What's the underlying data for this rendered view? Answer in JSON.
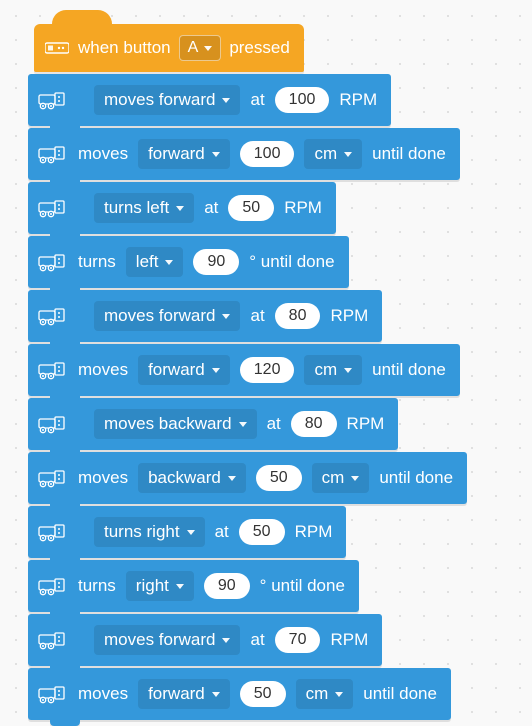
{
  "colors": {
    "event_block": "#f5a623",
    "motion_block": "#3498db",
    "motion_inner": "#2f89c5",
    "pill_bg": "#ffffff",
    "pill_text": "#333333",
    "canvas_bg": "#f9f9f9",
    "dot": "#d8d8d8"
  },
  "event": {
    "prefix": "when button",
    "button": "A",
    "suffix": "pressed"
  },
  "blocks": [
    {
      "kind": "rate",
      "indent": 1,
      "dd": "moves forward",
      "value": "100",
      "unit": "RPM",
      "at": "at"
    },
    {
      "kind": "until",
      "indent": 0,
      "verb": "moves",
      "dd1": "forward",
      "value": "100",
      "dd2": "cm",
      "tail": "until done"
    },
    {
      "kind": "rate",
      "indent": 1,
      "dd": "turns left",
      "value": "50",
      "unit": "RPM",
      "at": "at"
    },
    {
      "kind": "until_deg",
      "indent": 0,
      "verb": "turns",
      "dd1": "left",
      "value": "90",
      "tail": "° until done"
    },
    {
      "kind": "rate",
      "indent": 1,
      "dd": "moves forward",
      "value": "80",
      "unit": "RPM",
      "at": "at"
    },
    {
      "kind": "until",
      "indent": 0,
      "verb": "moves",
      "dd1": "forward",
      "value": "120",
      "dd2": "cm",
      "tail": "until done"
    },
    {
      "kind": "rate",
      "indent": 1,
      "dd": "moves backward",
      "value": "80",
      "unit": "RPM",
      "at": "at"
    },
    {
      "kind": "until",
      "indent": 0,
      "verb": "moves",
      "dd1": "backward",
      "value": "50",
      "dd2": "cm",
      "tail": "until done"
    },
    {
      "kind": "rate",
      "indent": 1,
      "dd": "turns right",
      "value": "50",
      "unit": "RPM",
      "at": "at"
    },
    {
      "kind": "until_deg",
      "indent": 0,
      "verb": "turns",
      "dd1": "right",
      "value": "90",
      "tail": "° until done"
    },
    {
      "kind": "rate",
      "indent": 1,
      "dd": "moves forward",
      "value": "70",
      "unit": "RPM",
      "at": "at"
    },
    {
      "kind": "until",
      "indent": 0,
      "verb": "moves",
      "dd1": "forward",
      "value": "50",
      "dd2": "cm",
      "tail": "until done"
    }
  ]
}
